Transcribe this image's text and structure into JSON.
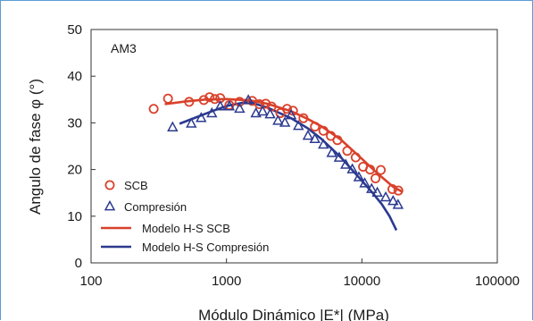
{
  "chart_data": {
    "type": "scatter",
    "panel_label": "AM3",
    "xlabel": "Módulo Dinámico |E*| (MPa)",
    "ylabel": "Angulo de fase φ (°)",
    "xscale": "log",
    "xlim": [
      100,
      100000
    ],
    "ylim": [
      0,
      50
    ],
    "xticks": [
      100,
      1000,
      10000,
      100000
    ],
    "xtick_labels": [
      "100",
      "1000",
      "10000",
      "100000"
    ],
    "yticks": [
      0,
      10,
      20,
      30,
      40,
      50
    ],
    "ytick_labels": [
      "0",
      "10",
      "20",
      "30",
      "40",
      "50"
    ],
    "grid": false,
    "legend_position": "bottom-left",
    "colors": {
      "scb": "#d9412b",
      "compresion": "#2b3a8f"
    },
    "series": [
      {
        "name": "SCB",
        "marker": "circle",
        "color": "#d9412b",
        "x": [
          290,
          370,
          530,
          680,
          750,
          820,
          900,
          1050,
          1250,
          1550,
          1750,
          1950,
          2150,
          2500,
          2800,
          3100,
          3700,
          4500,
          5200,
          5900,
          6600,
          7800,
          9000,
          10200,
          11500,
          12600,
          13800,
          16800,
          18600
        ],
        "y": [
          33,
          35.2,
          34.5,
          34.9,
          35.5,
          35.1,
          35.3,
          33.8,
          34.5,
          34.7,
          34.0,
          34.1,
          33.5,
          32.1,
          33.0,
          32.6,
          31.0,
          29.2,
          28.3,
          27.2,
          26.3,
          24.0,
          22.6,
          20.6,
          20.0,
          18.1,
          19.9,
          15.8,
          15.5
        ]
      },
      {
        "name": "Compresión",
        "marker": "triangle",
        "color": "#2b3a8f",
        "x": [
          400,
          550,
          650,
          780,
          900,
          1050,
          1250,
          1450,
          1650,
          1850,
          2100,
          2400,
          2700,
          3000,
          3400,
          4000,
          4500,
          5200,
          6000,
          6800,
          7600,
          8500,
          9500,
          10500,
          11800,
          13000,
          15000,
          17000,
          18500
        ],
        "y": [
          29.0,
          29.8,
          31.0,
          32.0,
          33.5,
          33.5,
          33.0,
          34.8,
          32.0,
          32.4,
          31.8,
          30.4,
          30.0,
          31.6,
          29.3,
          27.2,
          26.5,
          25.3,
          23.5,
          22.5,
          21.0,
          20.0,
          18.3,
          17.0,
          15.8,
          15.0,
          14.0,
          13.2,
          12.4
        ]
      },
      {
        "name": "Modelo H-S SCB",
        "line": true,
        "color": "#d9412b",
        "x": [
          350,
          500,
          700,
          1000,
          1500,
          2000,
          3000,
          4000,
          5000,
          7000,
          10000,
          13000,
          17000,
          20000
        ],
        "y": [
          34.0,
          34.6,
          35.0,
          35.1,
          34.8,
          34.1,
          32.5,
          30.8,
          29.3,
          26.4,
          22.3,
          19.2,
          16.3,
          15.2
        ]
      },
      {
        "name": "Modelo H-S Compresión",
        "line": true,
        "color": "#2b3a8f",
        "x": [
          450,
          600,
          800,
          1000,
          1300,
          1500,
          2000,
          3000,
          4000,
          5000,
          7000,
          10000,
          12000,
          14000,
          16000,
          18000
        ],
        "y": [
          29.8,
          31.2,
          32.6,
          33.6,
          34.3,
          34.4,
          33.3,
          31.0,
          28.8,
          26.6,
          22.6,
          17.6,
          15.0,
          12.6,
          10.0,
          7.0
        ]
      }
    ]
  }
}
